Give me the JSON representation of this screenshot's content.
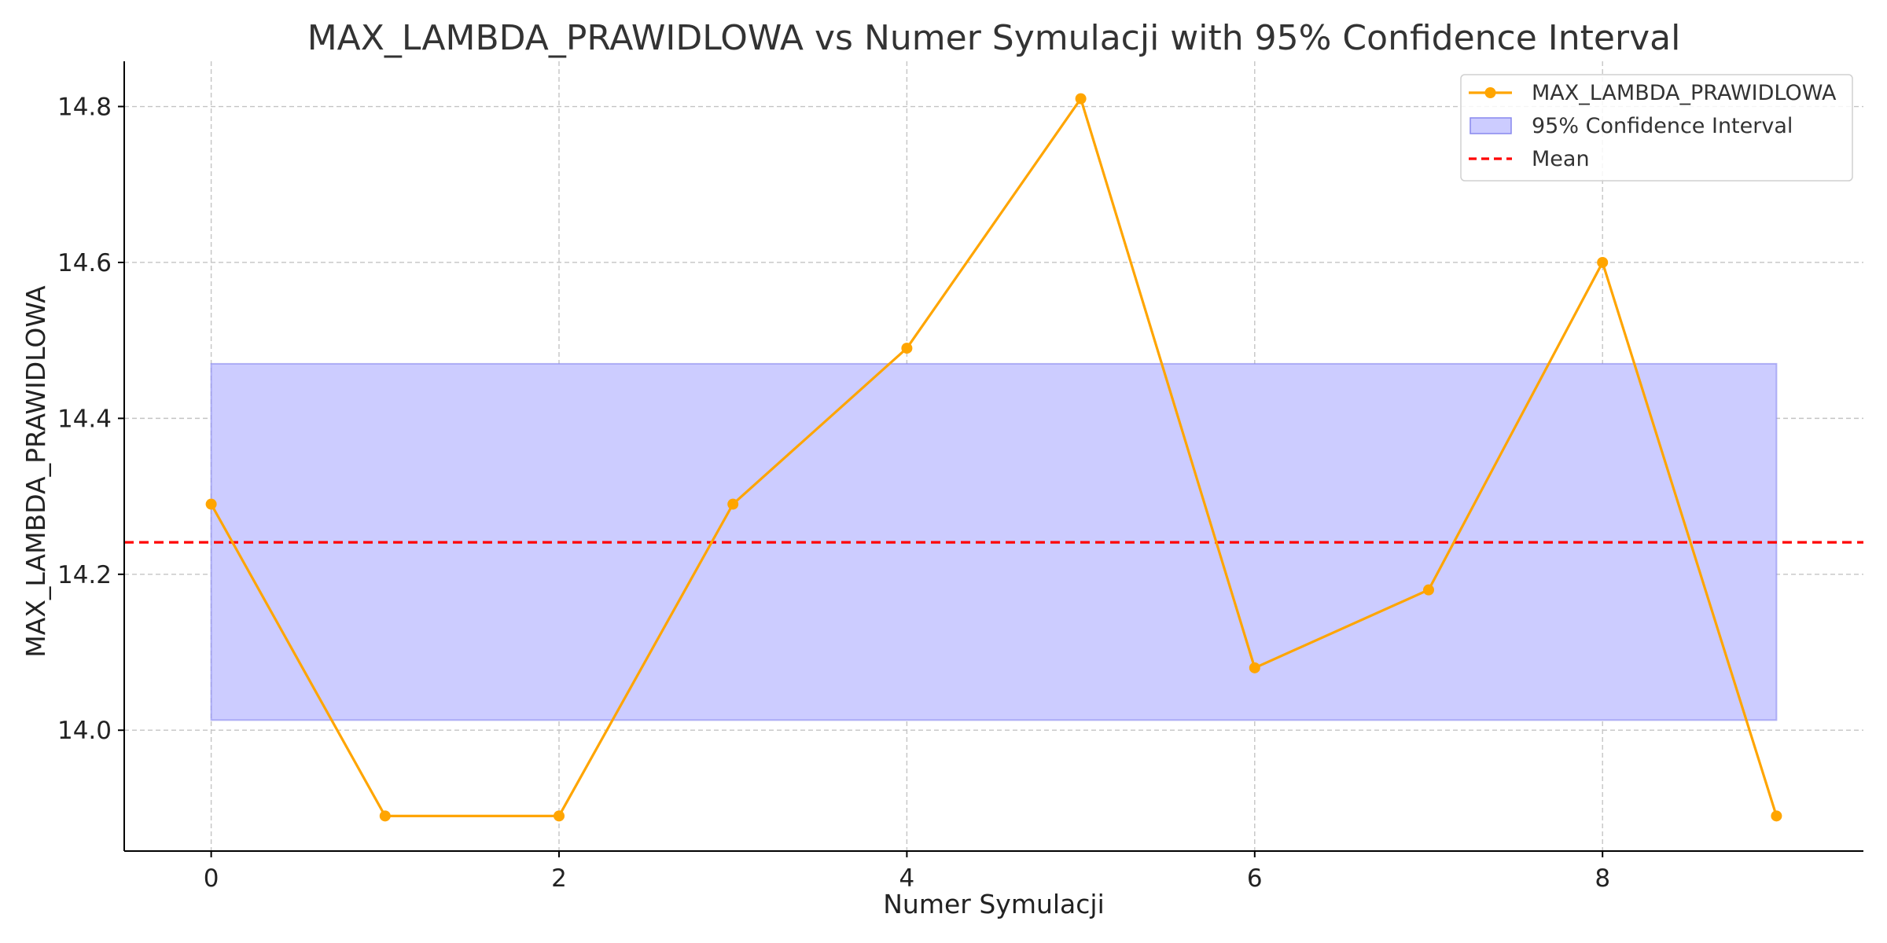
{
  "chart_data": {
    "type": "line",
    "title": "MAX_LAMBDA_PRAWIDLOWA vs Numer Symulacji with 95% Confidence Interval",
    "xlabel": "Numer Symulacji",
    "ylabel": "MAX_LAMBDA_PRAWIDLOWA",
    "xlim": [
      -0.5,
      9.5
    ],
    "ylim": [
      13.845,
      14.858
    ],
    "xticks": [
      0,
      2,
      4,
      6,
      8
    ],
    "yticks": [
      14.0,
      14.2,
      14.4,
      14.6,
      14.8
    ],
    "x_tick_labels": [
      "0",
      "2",
      "4",
      "6",
      "8"
    ],
    "y_tick_labels": [
      "14.0",
      "14.2",
      "14.4",
      "14.6",
      "14.8"
    ],
    "grid": true,
    "legend_position": "top-right",
    "series": [
      {
        "name": "MAX_LAMBDA_PRAWIDLOWA",
        "color": "#FFA500",
        "marker": "circle",
        "x": [
          0,
          1,
          2,
          3,
          4,
          5,
          6,
          7,
          8,
          9
        ],
        "y": [
          14.29,
          13.89,
          13.89,
          14.29,
          14.49,
          14.81,
          14.08,
          14.18,
          14.6,
          13.89
        ]
      }
    ],
    "confidence_interval": {
      "name": "95% Confidence Interval",
      "color": "#CCCCFF",
      "edge_color": "#8888EE",
      "x_range": [
        0,
        9
      ],
      "lower": 14.013,
      "upper": 14.47
    },
    "mean_line": {
      "name": "Mean",
      "color": "#FF0000",
      "style": "dashed",
      "value": 14.241
    }
  }
}
